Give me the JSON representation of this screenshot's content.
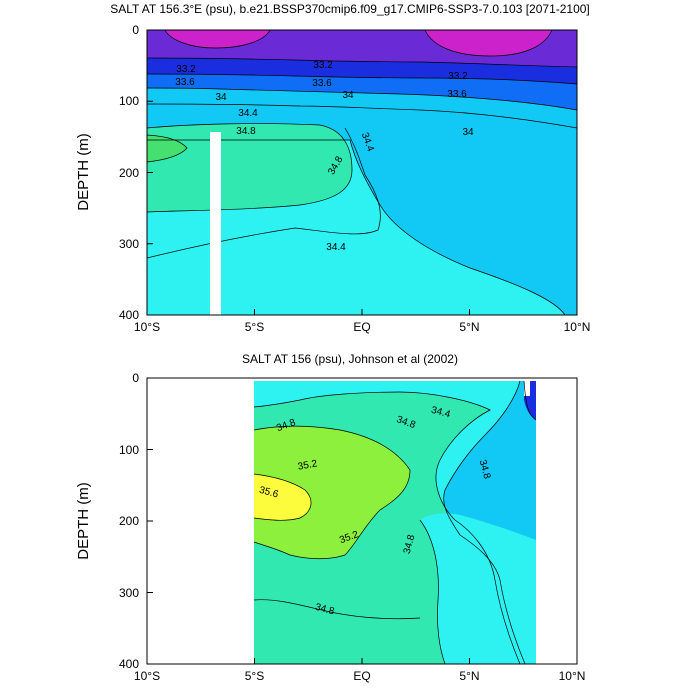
{
  "panels": [
    {
      "title": "SALT AT 156.3°E (psu), b.e21.BSSP370cmip6.f09_g17.CMIP6-SSP3-7.0.103 [2071-2100]",
      "ylabel": "DEPTH (m)",
      "xticks": [
        "10°S",
        "5°S",
        "EQ",
        "5°N",
        "10°N"
      ],
      "yticks": [
        "0",
        "100",
        "200",
        "300",
        "400"
      ],
      "contour_labels": [
        "33.2",
        "33.2",
        "33.2",
        "33.6",
        "33.6",
        "33.6",
        "34",
        "34",
        "34",
        "34.4",
        "34.4",
        "34.4",
        "34.8",
        "34.8"
      ]
    },
    {
      "title": "SALT AT 156 (psu), Johnson et al (2002)",
      "ylabel": "DEPTH (m)",
      "xticks": [
        "10°S",
        "5°S",
        "EQ",
        "5°N",
        "10°N"
      ],
      "yticks": [
        "0",
        "100",
        "200",
        "300",
        "400"
      ],
      "contour_labels": [
        "34.8",
        "34.8",
        "34.4",
        "35.2",
        "35.6",
        "35.2",
        "34.8",
        "34.8",
        "34.8"
      ]
    }
  ],
  "chart_data": [
    {
      "type": "heatmap",
      "title": "SALT AT 156.3°E (psu), b.e21.BSSP370cmip6.f09_g17.CMIP6-SSP3-7.0.103 [2071-2100]",
      "xlabel": "",
      "ylabel": "DEPTH (m)",
      "xlim": [
        -10,
        10
      ],
      "ylim": [
        400,
        0
      ],
      "x_ticks": [
        -10,
        -5,
        0,
        5,
        10
      ],
      "y_ticks": [
        0,
        100,
        200,
        300,
        400
      ],
      "contour_levels": [
        32.8,
        33.2,
        33.6,
        34.0,
        34.4,
        34.8,
        35.2,
        35.6
      ],
      "fill_colors": {
        "<32.8": "#cc22cc",
        "32.8-33.2": "#6a2bd6",
        "33.2-33.6": "#1a2ee0",
        "33.6-34.0": "#0f6ef5",
        "34.0-34.4": "#12c8f5",
        "34.4-34.8": "#2ef2f2",
        "34.8-35.2": "#30e8b0",
        "35.2-35.6": "#45e070"
      },
      "depth_profile_equator": [
        [
          0,
          32.9
        ],
        [
          50,
          33.1
        ],
        [
          75,
          33.6
        ],
        [
          100,
          34.0
        ],
        [
          125,
          34.4
        ],
        [
          150,
          34.6
        ],
        [
          200,
          34.5
        ],
        [
          300,
          34.5
        ],
        [
          400,
          34.5
        ]
      ],
      "depth_profile_9S": [
        [
          0,
          32.8
        ],
        [
          50,
          33.2
        ],
        [
          90,
          34.0
        ],
        [
          140,
          34.8
        ],
        [
          165,
          35.0
        ],
        [
          220,
          34.7
        ],
        [
          300,
          34.5
        ],
        [
          400,
          34.4
        ]
      ],
      "depth_profile_8N": [
        [
          0,
          32.6
        ],
        [
          60,
          33.2
        ],
        [
          90,
          33.6
        ],
        [
          130,
          34.0
        ],
        [
          250,
          34.2
        ],
        [
          400,
          34.3
        ]
      ],
      "missing_data": [
        {
          "lat": -6.9,
          "depth_range": [
            145,
            400
          ]
        }
      ]
    },
    {
      "type": "heatmap",
      "title": "SALT AT 156 (psu), Johnson et al (2002)",
      "xlabel": "",
      "ylabel": "DEPTH (m)",
      "xlim": [
        -10,
        10
      ],
      "ylim": [
        400,
        0
      ],
      "x_ticks": [
        -10,
        -5,
        0,
        5,
        10
      ],
      "y_ticks": [
        0,
        100,
        200,
        300,
        400
      ],
      "data_lat_range": [
        -5,
        8
      ],
      "contour_levels": [
        34.0,
        34.4,
        34.8,
        35.2,
        35.6
      ],
      "fill_colors": {
        "<34.0": "#0f6ef5",
        "34.0-34.4": "#12c8f5",
        "34.4-34.8": "#2ef2f2",
        "34.8-35.2": "#30e8b0",
        "35.2-35.6": "#8cf03c",
        ">35.6": "#fcfc3c"
      },
      "depth_profile_4S": [
        [
          0,
          34.5
        ],
        [
          50,
          34.9
        ],
        [
          120,
          35.3
        ],
        [
          180,
          35.7
        ],
        [
          250,
          35.0
        ],
        [
          330,
          34.9
        ],
        [
          400,
          34.8
        ]
      ],
      "depth_profile_equator": [
        [
          0,
          34.5
        ],
        [
          60,
          34.9
        ],
        [
          120,
          35.2
        ],
        [
          200,
          34.9
        ],
        [
          300,
          34.8
        ],
        [
          400,
          34.8
        ]
      ],
      "depth_profile_5N": [
        [
          0,
          34.3
        ],
        [
          50,
          34.5
        ],
        [
          150,
          34.7
        ],
        [
          250,
          34.6
        ],
        [
          400,
          34.7
        ]
      ]
    }
  ]
}
